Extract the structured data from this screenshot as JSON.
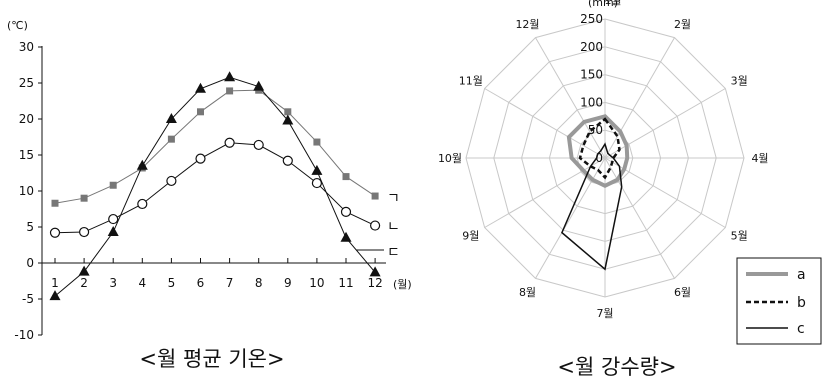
{
  "chart_data": [
    {
      "type": "line",
      "title": "<월 평균 기온>",
      "ylabel": "(℃)",
      "xlabel": "(월)",
      "categories": [
        "1",
        "2",
        "3",
        "4",
        "5",
        "6",
        "7",
        "8",
        "9",
        "10",
        "11",
        "12"
      ],
      "ylim": [
        -10,
        30
      ],
      "yticks": [
        "30",
        "25",
        "20",
        "15",
        "10",
        "5",
        "0",
        "-5",
        "-10"
      ],
      "grid": false,
      "series": [
        {
          "name": "ㄱ",
          "marker": "square",
          "color": "#777777",
          "values": [
            8.3,
            9.0,
            10.8,
            13.2,
            17.2,
            21.0,
            23.9,
            24.0,
            21.0,
            16.8,
            12.0,
            9.3
          ]
        },
        {
          "name": "ㄴ",
          "marker": "circle",
          "color": "#111111",
          "values": [
            4.2,
            4.3,
            6.1,
            8.2,
            11.4,
            14.5,
            16.7,
            16.4,
            14.2,
            11.1,
            7.1,
            5.2
          ]
        },
        {
          "name": "ㄷ",
          "marker": "triangle",
          "color": "#111111",
          "values": [
            -4.6,
            -1.2,
            4.3,
            13.5,
            20.0,
            24.2,
            25.8,
            24.5,
            19.8,
            12.8,
            3.5,
            -1.3
          ]
        }
      ]
    },
    {
      "type": "radar",
      "title": "<월 강수량>",
      "unit": "(mm)",
      "categories": [
        "1월",
        "2월",
        "3월",
        "4월",
        "5월",
        "6월",
        "7월",
        "8월",
        "9월",
        "10월",
        "11월",
        "12월"
      ],
      "rlim": [
        0,
        250
      ],
      "rticks": [
        "0",
        "50",
        "100",
        "150",
        "200",
        "250"
      ],
      "grid": true,
      "legend_position": "bottom-right",
      "series": [
        {
          "name": "a",
          "style": "thick-gray",
          "color": "#999999",
          "values": [
            75,
            55,
            45,
            40,
            40,
            45,
            50,
            45,
            45,
            60,
            75,
            75
          ]
        },
        {
          "name": "b",
          "style": "dashed",
          "color": "#111111",
          "values": [
            70,
            45,
            30,
            15,
            15,
            20,
            35,
            25,
            30,
            45,
            45,
            55
          ]
        },
        {
          "name": "c",
          "style": "solid",
          "color": "#111111",
          "values": [
            25,
            10,
            10,
            15,
            30,
            60,
            200,
            155,
            30,
            15,
            15,
            15
          ]
        }
      ]
    }
  ]
}
